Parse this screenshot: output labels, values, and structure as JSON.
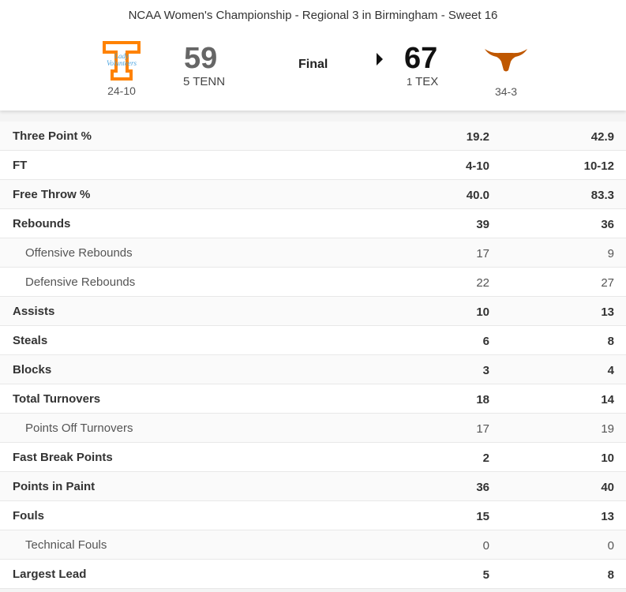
{
  "game": {
    "title": "NCAA Women's Championship - Regional 3 in Birmingham - Sweet 16",
    "status": "Final",
    "away": {
      "logo_text": "Lady Volunteers",
      "score": "59",
      "rank": "5",
      "abbr": "TENN",
      "record": "24-10",
      "color": "#FF8200"
    },
    "home": {
      "score": "67",
      "rank": "1",
      "abbr": "TEX",
      "record": "34-3",
      "color": "#BF5700",
      "winner": true
    }
  },
  "stats": [
    {
      "label": "Three Point %",
      "away": "19.2",
      "home": "42.9",
      "sub": false
    },
    {
      "label": "FT",
      "away": "4-10",
      "home": "10-12",
      "sub": false
    },
    {
      "label": "Free Throw %",
      "away": "40.0",
      "home": "83.3",
      "sub": false
    },
    {
      "label": "Rebounds",
      "away": "39",
      "home": "36",
      "sub": false
    },
    {
      "label": "Offensive Rebounds",
      "away": "17",
      "home": "9",
      "sub": true
    },
    {
      "label": "Defensive Rebounds",
      "away": "22",
      "home": "27",
      "sub": true
    },
    {
      "label": "Assists",
      "away": "10",
      "home": "13",
      "sub": false
    },
    {
      "label": "Steals",
      "away": "6",
      "home": "8",
      "sub": false
    },
    {
      "label": "Blocks",
      "away": "3",
      "home": "4",
      "sub": false
    },
    {
      "label": "Total Turnovers",
      "away": "18",
      "home": "14",
      "sub": false
    },
    {
      "label": "Points Off Turnovers",
      "away": "17",
      "home": "19",
      "sub": true
    },
    {
      "label": "Fast Break Points",
      "away": "2",
      "home": "10",
      "sub": false
    },
    {
      "label": "Points in Paint",
      "away": "36",
      "home": "40",
      "sub": false
    },
    {
      "label": "Fouls",
      "away": "15",
      "home": "13",
      "sub": false
    },
    {
      "label": "Technical Fouls",
      "away": "0",
      "home": "0",
      "sub": true
    },
    {
      "label": "Largest Lead",
      "away": "5",
      "home": "8",
      "sub": false
    }
  ]
}
